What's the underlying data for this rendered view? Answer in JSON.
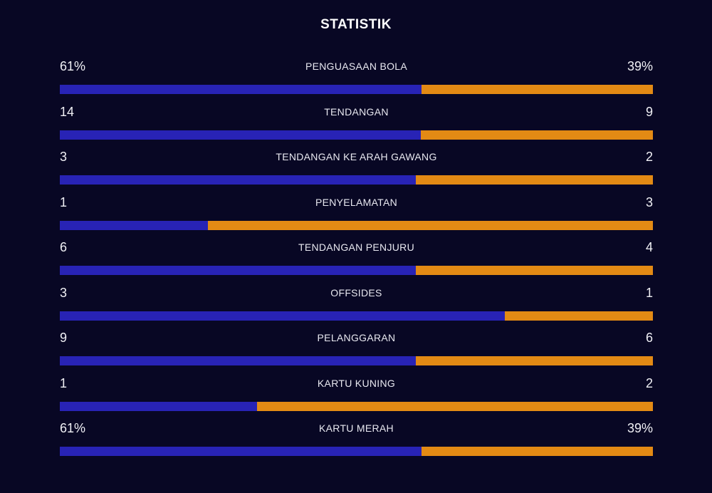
{
  "title": "STATISTIK",
  "colors": {
    "background": "#080724",
    "home_bar": "#2823b5",
    "away_bar": "#e38a14"
  },
  "stats": [
    {
      "label": "PENGUASAAN BOLA",
      "home": "61%",
      "away": "39%",
      "home_share": 0.61
    },
    {
      "label": "TENDANGAN",
      "home": "14",
      "away": "9",
      "home_share": 0.609
    },
    {
      "label": "TENDANGAN KE ARAH GAWANG",
      "home": "3",
      "away": "2",
      "home_share": 0.6
    },
    {
      "label": "PENYELAMATAN",
      "home": "1",
      "away": "3",
      "home_share": 0.25
    },
    {
      "label": "TENDANGAN PENJURU",
      "home": "6",
      "away": "4",
      "home_share": 0.6
    },
    {
      "label": "OFFSIDES",
      "home": "3",
      "away": "1",
      "home_share": 0.75
    },
    {
      "label": "PELANGGARAN",
      "home": "9",
      "away": "6",
      "home_share": 0.6
    },
    {
      "label": "KARTU KUNING",
      "home": "1",
      "away": "2",
      "home_share": 0.333
    },
    {
      "label": "KARTU MERAH",
      "home": "61%",
      "away": "39%",
      "home_share": 0.61
    }
  ]
}
